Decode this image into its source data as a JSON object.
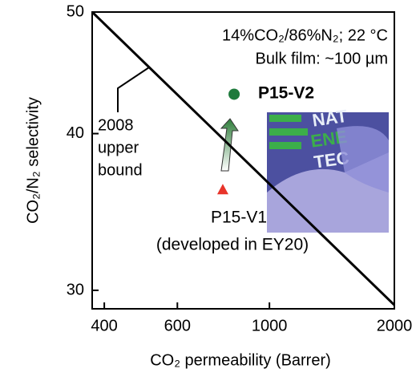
{
  "chart_data": {
    "type": "scatter",
    "x_label": "CO₂ permeability (Barrer)",
    "y_label": "CO₂/N₂ selectivity",
    "xlim": [
      374,
      2000
    ],
    "ylim": [
      29,
      50
    ],
    "xticks": [
      400,
      600,
      1000,
      2000
    ],
    "yticks": [
      30,
      40,
      50
    ],
    "log_x": true,
    "log_y": true,
    "annotations": [
      "14%CO₂/86%N₂; 22 °C",
      "Bulk film: ~100 µm"
    ],
    "upper_bound": {
      "label": [
        "2008",
        "upper",
        "bound"
      ],
      "x": [
        374,
        2000
      ],
      "y": [
        50,
        29.2
      ],
      "color": "#000000"
    },
    "series": [
      {
        "name": "P15-V2",
        "x": [
          822
        ],
        "y": [
          43.0
        ],
        "color": "#1e7a3c",
        "marker": "circle"
      },
      {
        "name": "P15-V1",
        "subtitle": "(developed in EY20)",
        "x": [
          772
        ],
        "y": [
          36.1
        ],
        "color": "#e8342a",
        "marker": "triangle"
      }
    ]
  }
}
